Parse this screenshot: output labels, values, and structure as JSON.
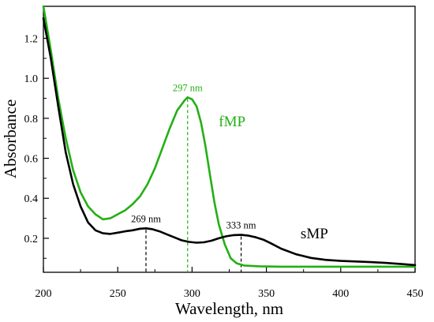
{
  "chart_data": {
    "type": "line",
    "xlabel": "Wavelength, nm",
    "ylabel": "Absorbance",
    "xlim": [
      200,
      450
    ],
    "ylim": [
      0.03,
      1.36
    ],
    "xticks": [
      200,
      250,
      300,
      350,
      400,
      450
    ],
    "yticks": [
      0.2,
      0.4,
      0.6,
      0.8,
      1.0,
      1.2
    ],
    "xtick_labels": [
      "200",
      "250",
      "300",
      "350",
      "400",
      "450"
    ],
    "ytick_labels": [
      "0.2",
      "0.4",
      "0.6",
      "0.8",
      "1.0",
      "1.2"
    ],
    "grid": false,
    "legend": "none",
    "series": [
      {
        "name": "fMP",
        "color": "#22b014",
        "points": [
          [
            200,
            1.36
          ],
          [
            205,
            1.14
          ],
          [
            210,
            0.9
          ],
          [
            215,
            0.7
          ],
          [
            220,
            0.54
          ],
          [
            225,
            0.43
          ],
          [
            230,
            0.36
          ],
          [
            235,
            0.32
          ],
          [
            240,
            0.295
          ],
          [
            245,
            0.3
          ],
          [
            250,
            0.32
          ],
          [
            255,
            0.34
          ],
          [
            260,
            0.37
          ],
          [
            265,
            0.41
          ],
          [
            270,
            0.47
          ],
          [
            275,
            0.55
          ],
          [
            280,
            0.65
          ],
          [
            285,
            0.75
          ],
          [
            290,
            0.84
          ],
          [
            295,
            0.89
          ],
          [
            297,
            0.905
          ],
          [
            300,
            0.895
          ],
          [
            303,
            0.86
          ],
          [
            306,
            0.78
          ],
          [
            309,
            0.66
          ],
          [
            312,
            0.52
          ],
          [
            315,
            0.38
          ],
          [
            318,
            0.27
          ],
          [
            322,
            0.17
          ],
          [
            326,
            0.1
          ],
          [
            330,
            0.075
          ],
          [
            335,
            0.064
          ],
          [
            345,
            0.06
          ],
          [
            360,
            0.058
          ],
          [
            400,
            0.058
          ],
          [
            450,
            0.058
          ]
        ]
      },
      {
        "name": "sMP",
        "color": "#000000",
        "points": [
          [
            200,
            1.3
          ],
          [
            205,
            1.1
          ],
          [
            210,
            0.86
          ],
          [
            215,
            0.63
          ],
          [
            220,
            0.47
          ],
          [
            225,
            0.36
          ],
          [
            230,
            0.28
          ],
          [
            235,
            0.24
          ],
          [
            240,
            0.225
          ],
          [
            245,
            0.222
          ],
          [
            250,
            0.228
          ],
          [
            255,
            0.235
          ],
          [
            260,
            0.24
          ],
          [
            265,
            0.248
          ],
          [
            269,
            0.25
          ],
          [
            273,
            0.246
          ],
          [
            278,
            0.235
          ],
          [
            283,
            0.22
          ],
          [
            288,
            0.205
          ],
          [
            293,
            0.19
          ],
          [
            298,
            0.182
          ],
          [
            303,
            0.178
          ],
          [
            308,
            0.18
          ],
          [
            313,
            0.188
          ],
          [
            318,
            0.2
          ],
          [
            323,
            0.21
          ],
          [
            328,
            0.216
          ],
          [
            333,
            0.217
          ],
          [
            338,
            0.213
          ],
          [
            343,
            0.205
          ],
          [
            348,
            0.193
          ],
          [
            353,
            0.175
          ],
          [
            360,
            0.148
          ],
          [
            370,
            0.12
          ],
          [
            380,
            0.102
          ],
          [
            390,
            0.092
          ],
          [
            400,
            0.087
          ],
          [
            410,
            0.084
          ],
          [
            420,
            0.081
          ],
          [
            430,
            0.077
          ],
          [
            440,
            0.072
          ],
          [
            450,
            0.066
          ]
        ]
      }
    ],
    "annotations": [
      {
        "text": "297 nm",
        "x": 297,
        "y": 0.905,
        "color": "#22b014"
      },
      {
        "text": "269 nm",
        "x": 269,
        "y": 0.25,
        "color": "#000000"
      },
      {
        "text": "333 nm",
        "x": 333,
        "y": 0.217,
        "color": "#000000"
      }
    ],
    "series_labels": [
      {
        "text": "fMP",
        "x": 318,
        "y": 0.76,
        "color": "#22b014"
      },
      {
        "text": "sMP",
        "x": 373,
        "y": 0.2,
        "color": "#000000"
      }
    ]
  }
}
